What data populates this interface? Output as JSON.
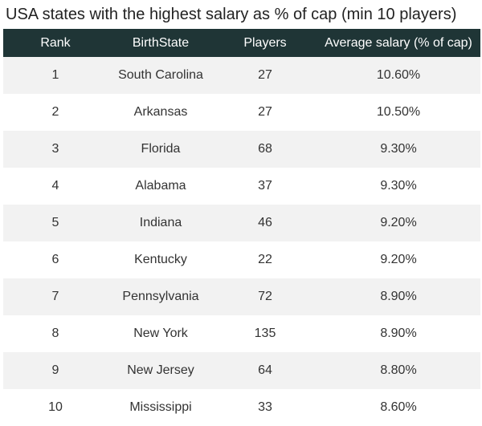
{
  "chart_data": {
    "type": "table",
    "title": "USA states with the highest salary as % of cap (min 10 players)",
    "columns": [
      "Rank",
      "BirthState",
      "Players",
      "Average salary (% of cap)"
    ],
    "rows": [
      [
        "1",
        "South Carolina",
        "27",
        "10.60%"
      ],
      [
        "2",
        "Arkansas",
        "27",
        "10.50%"
      ],
      [
        "3",
        "Florida",
        "68",
        "9.30%"
      ],
      [
        "4",
        "Alabama",
        "37",
        "9.30%"
      ],
      [
        "5",
        "Indiana",
        "46",
        "9.20%"
      ],
      [
        "6",
        "Kentucky",
        "22",
        "9.20%"
      ],
      [
        "7",
        "Pennsylvania",
        "72",
        "8.90%"
      ],
      [
        "8",
        "New York",
        "135",
        "8.90%"
      ],
      [
        "9",
        "New Jersey",
        "64",
        "8.80%"
      ],
      [
        "10",
        "Mississippi",
        "33",
        "8.60%"
      ]
    ]
  },
  "colors": {
    "header_bg": "#1f3536",
    "header_text": "#ffffff",
    "row_alt_bg": "#f2f2f2"
  }
}
